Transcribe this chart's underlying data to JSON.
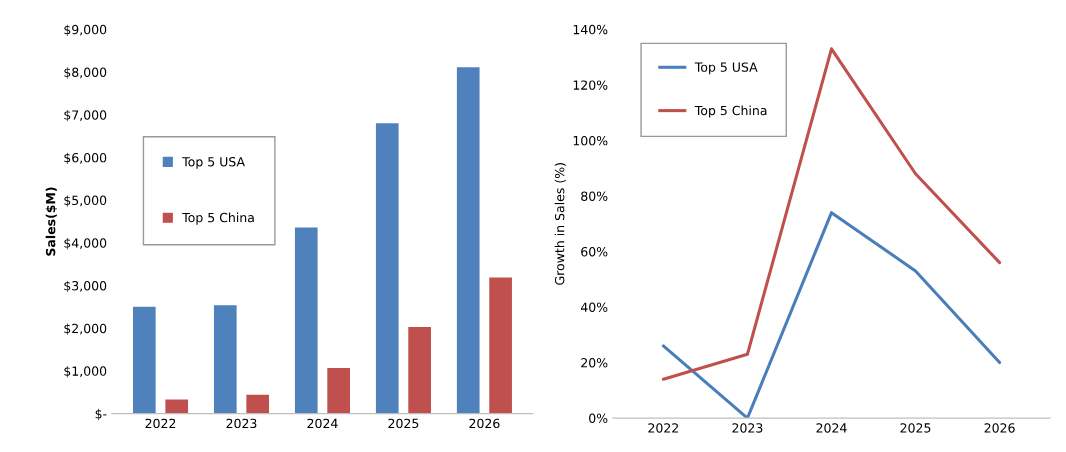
{
  "chart_data": [
    {
      "type": "bar",
      "ylabel": "Sales($M)",
      "categories": [
        "2022",
        "2023",
        "2024",
        "2025",
        "2026"
      ],
      "series": [
        {
          "name": "Top 5 USA",
          "color": "#4f81bd",
          "values": [
            2500,
            2540,
            4360,
            6800,
            8110
          ]
        },
        {
          "name": "Top 5 China",
          "color": "#c0504d",
          "values": [
            330,
            440,
            1070,
            2030,
            3190
          ]
        }
      ],
      "ylim": [
        0,
        9000
      ],
      "yticks": [
        {
          "value": 0,
          "label": "$-"
        },
        {
          "value": 1000,
          "label": "$1,000"
        },
        {
          "value": 2000,
          "label": "$2,000"
        },
        {
          "value": 3000,
          "label": "$3,000"
        },
        {
          "value": 4000,
          "label": "$4,000"
        },
        {
          "value": 5000,
          "label": "$5,000"
        },
        {
          "value": 6000,
          "label": "$6,000"
        },
        {
          "value": 7000,
          "label": "$7,000"
        },
        {
          "value": 8000,
          "label": "$8,000"
        },
        {
          "value": 9000,
          "label": "$9,000"
        }
      ],
      "legend": "upper center",
      "grid": false
    },
    {
      "type": "line",
      "ylabel": "Growth in Sales (%)",
      "categories": [
        "2022",
        "2023",
        "2024",
        "2025",
        "2026"
      ],
      "series": [
        {
          "name": "Top 5 USA",
          "color": "#4a7ebb",
          "values": [
            26,
            0,
            74,
            53,
            20
          ]
        },
        {
          "name": "Top 5 China",
          "color": "#c0504d",
          "values": [
            14,
            23,
            133,
            88,
            56
          ]
        }
      ],
      "ylim": [
        0,
        140
      ],
      "yticks": [
        {
          "value": 0,
          "label": "0%"
        },
        {
          "value": 20,
          "label": "20%"
        },
        {
          "value": 40,
          "label": "40%"
        },
        {
          "value": 60,
          "label": "60%"
        },
        {
          "value": 80,
          "label": "80%"
        },
        {
          "value": 100,
          "label": "100%"
        },
        {
          "value": 120,
          "label": "120%"
        },
        {
          "value": 140,
          "label": "140%"
        }
      ],
      "legend": "upper left",
      "grid": false,
      "marker": "none",
      "line_style": "solid"
    }
  ]
}
